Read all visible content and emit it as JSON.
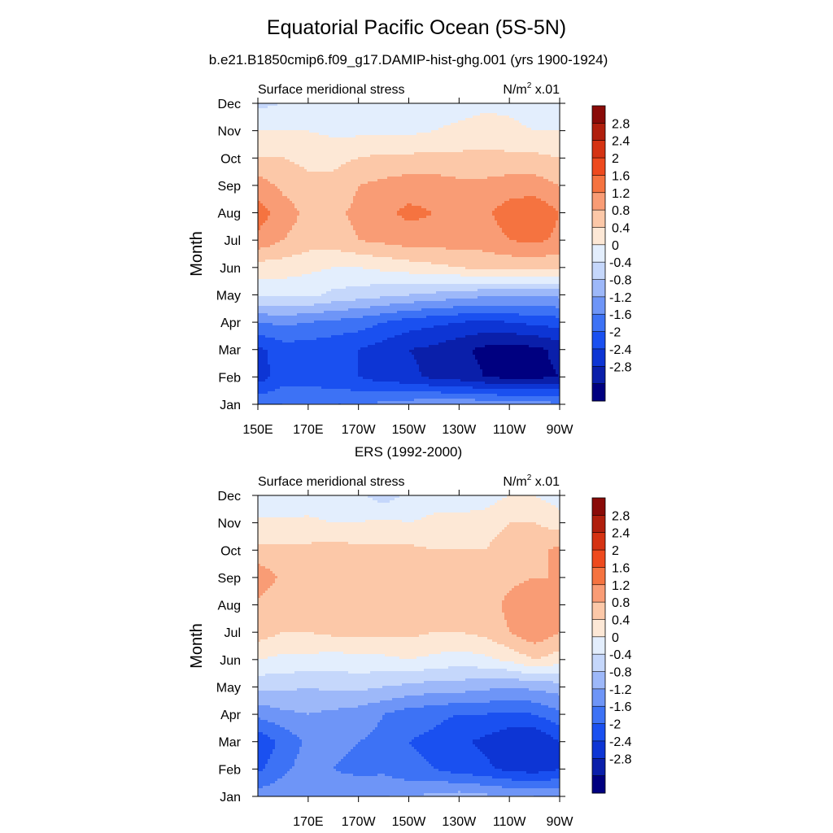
{
  "title": "Equatorial Pacific Ocean (5S-5N)",
  "subtitle": "b.e21.B1850cmip6.f09_g17.DAMIP-hist-ghg.001 (yrs 1900-1924)",
  "colors": {
    "levels": [
      "#000080",
      "#0a1faa",
      "#0d35d4",
      "#1a50f0",
      "#3d72f5",
      "#6e95f7",
      "#9db8f9",
      "#c5d7fb",
      "#e3eefd",
      "#fde8d6",
      "#fcc8a8",
      "#f99c75",
      "#f57340",
      "#ee4a1e",
      "#d53313",
      "#b01f0d",
      "#8a0b08"
    ],
    "bounds": [
      -3.2,
      -2.8,
      -2.4,
      -2,
      -1.6,
      -1.2,
      -0.8,
      -0.4,
      0,
      0.4,
      0.8,
      1.2,
      1.6,
      2,
      2.4,
      2.8,
      3.2
    ]
  },
  "chart_data": [
    {
      "type": "heatmap",
      "name": "model",
      "title": "b.e21.B1850cmip6.f09_g17.DAMIP-hist-ghg.001 (yrs 1900-1924)",
      "left_label": "Surface meridional stress",
      "units_label": "N/m",
      "units_sup": "2",
      "units_scale": " x.01",
      "xlabel": "",
      "ylabel": "Month",
      "x_range": [
        150,
        270
      ],
      "x_ticks": [
        150,
        170,
        190,
        210,
        230,
        250,
        270
      ],
      "x_tick_labels": [
        "150E",
        "170E",
        "170W",
        "150W",
        "130W",
        "110W",
        "90W"
      ],
      "y_ticks": [
        "Jan",
        "Feb",
        "Mar",
        "Apr",
        "May",
        "Jun",
        "Jul",
        "Aug",
        "Sep",
        "Oct",
        "Nov",
        "Dec"
      ],
      "colorbar_labels": [
        "2.8",
        "2.4",
        "2",
        "1.6",
        "1.2",
        "0.8",
        "0.4",
        "0",
        "-0.4",
        "-0.8",
        "-1.2",
        "-1.6",
        "-2",
        "-2.4",
        "-2.8"
      ],
      "lon": [
        150,
        160,
        170,
        180,
        190,
        200,
        210,
        220,
        230,
        240,
        250,
        260,
        270
      ],
      "values": [
        [
          -1.3,
          -1.2,
          -1.2,
          -1.2,
          -1.2,
          -1.1,
          -1.0,
          -0.9,
          -0.9,
          -0.9,
          -1.0,
          -1.0,
          -1.1
        ],
        [
          -2.2,
          -1.8,
          -1.8,
          -1.9,
          -2.0,
          -2.2,
          -2.3,
          -2.5,
          -2.6,
          -2.8,
          -2.9,
          -2.9,
          -2.8
        ],
        [
          -2.1,
          -1.8,
          -1.8,
          -1.9,
          -2.0,
          -2.2,
          -2.4,
          -2.5,
          -2.7,
          -2.9,
          -3.0,
          -2.9,
          -2.7
        ],
        [
          -1.2,
          -1.1,
          -1.2,
          -1.3,
          -1.4,
          -1.6,
          -1.8,
          -1.9,
          -2.0,
          -2.1,
          -2.0,
          -1.9,
          -1.8
        ],
        [
          0.1,
          0.1,
          0.1,
          -0.1,
          -0.2,
          -0.3,
          -0.4,
          -0.5,
          -0.6,
          -0.7,
          -0.7,
          -0.7,
          -0.7
        ],
        [
          0.6,
          0.6,
          0.5,
          0.4,
          0.4,
          0.5,
          0.6,
          0.7,
          0.8,
          0.9,
          0.9,
          0.9,
          0.9
        ],
        [
          1.5,
          1.2,
          1.0,
          1.0,
          1.2,
          1.3,
          1.4,
          1.4,
          1.4,
          1.4,
          1.6,
          1.7,
          1.5
        ],
        [
          1.8,
          1.4,
          1.1,
          1.1,
          1.3,
          1.5,
          1.7,
          1.6,
          1.5,
          1.5,
          1.8,
          1.9,
          1.6
        ],
        [
          1.4,
          1.1,
          0.9,
          0.9,
          1.2,
          1.3,
          1.4,
          1.4,
          1.3,
          1.3,
          1.4,
          1.4,
          1.2
        ],
        [
          0.8,
          0.8,
          0.7,
          0.7,
          0.8,
          0.9,
          0.9,
          0.9,
          0.9,
          0.9,
          0.9,
          0.9,
          0.8
        ],
        [
          0.4,
          0.4,
          0.4,
          0.3,
          0.3,
          0.3,
          0.3,
          0.4,
          0.5,
          0.6,
          0.5,
          0.4,
          0.4
        ],
        [
          -0.1,
          0.0,
          0.0,
          0.1,
          0.1,
          0.1,
          0.1,
          0.2,
          0.2,
          0.3,
          0.3,
          0.2,
          0.2
        ]
      ]
    },
    {
      "type": "heatmap",
      "name": "ers",
      "title": "ERS (1992-2000)",
      "left_label": "Surface meridional stress",
      "units_label": "N/m",
      "units_sup": "2",
      "units_scale": " x.01",
      "xlabel": "",
      "ylabel": "Month",
      "x_range": [
        150,
        270
      ],
      "x_ticks": [
        170,
        190,
        210,
        230,
        250,
        270
      ],
      "x_tick_labels": [
        "170E",
        "170W",
        "150W",
        "130W",
        "110W",
        "90W"
      ],
      "y_ticks": [
        "Jan",
        "Feb",
        "Mar",
        "Apr",
        "May",
        "Jun",
        "Jul",
        "Aug",
        "Sep",
        "Oct",
        "Nov",
        "Dec"
      ],
      "colorbar_labels": [
        "2.8",
        "2.4",
        "2",
        "1.6",
        "1.2",
        "0.8",
        "0.4",
        "0",
        "-0.4",
        "-0.8",
        "-1.2",
        "-1.6",
        "-2",
        "-2.4",
        "-2.8"
      ],
      "lon": [
        150,
        160,
        170,
        180,
        190,
        200,
        210,
        220,
        230,
        240,
        250,
        260,
        270
      ],
      "values": [
        [
          -1.0,
          -0.9,
          -0.9,
          -1.0,
          -0.9,
          -0.8,
          -0.8,
          -0.7,
          -0.6,
          -0.7,
          -0.8,
          -0.8,
          -0.9
        ],
        [
          -1.7,
          -1.3,
          -1.0,
          -1.2,
          -1.3,
          -1.3,
          -1.5,
          -1.6,
          -1.8,
          -1.9,
          -2.1,
          -2.2,
          -2.0
        ],
        [
          -1.9,
          -1.5,
          -1.1,
          -1.1,
          -1.2,
          -1.3,
          -1.6,
          -1.7,
          -1.9,
          -2.1,
          -2.3,
          -2.4,
          -2.0
        ],
        [
          -1.1,
          -0.9,
          -0.8,
          -0.9,
          -1.0,
          -1.2,
          -1.4,
          -1.5,
          -1.6,
          -1.6,
          -1.7,
          -1.6,
          -1.3
        ],
        [
          -0.3,
          -0.3,
          -0.4,
          -0.3,
          -0.3,
          -0.4,
          -0.5,
          -0.6,
          -0.6,
          -0.7,
          -0.8,
          -0.7,
          -0.6
        ],
        [
          0.4,
          0.3,
          0.3,
          0.2,
          0.3,
          0.3,
          0.4,
          0.3,
          0.2,
          0.3,
          0.5,
          0.8,
          0.6
        ],
        [
          1.0,
          0.8,
          0.8,
          0.9,
          0.9,
          0.9,
          0.9,
          0.8,
          0.8,
          0.9,
          1.2,
          1.5,
          1.2
        ],
        [
          1.1,
          0.9,
          1.1,
          1.2,
          1.0,
          1.1,
          1.0,
          1.0,
          0.9,
          1.0,
          1.3,
          1.5,
          1.3
        ],
        [
          1.5,
          1.1,
          1.0,
          1.2,
          1.1,
          1.1,
          1.0,
          1.0,
          0.9,
          1.0,
          1.1,
          1.2,
          1.2
        ],
        [
          0.9,
          0.9,
          0.9,
          1.0,
          0.9,
          0.9,
          0.9,
          0.8,
          0.8,
          0.8,
          1.0,
          1.1,
          1.3
        ],
        [
          0.5,
          0.5,
          0.5,
          0.4,
          0.4,
          0.5,
          0.4,
          0.5,
          0.5,
          0.6,
          0.8,
          0.8,
          0.6
        ],
        [
          0.0,
          0.0,
          0.1,
          0.0,
          0.1,
          -0.2,
          0.1,
          0.2,
          0.2,
          0.2,
          0.4,
          0.4,
          0.2
        ]
      ]
    }
  ]
}
